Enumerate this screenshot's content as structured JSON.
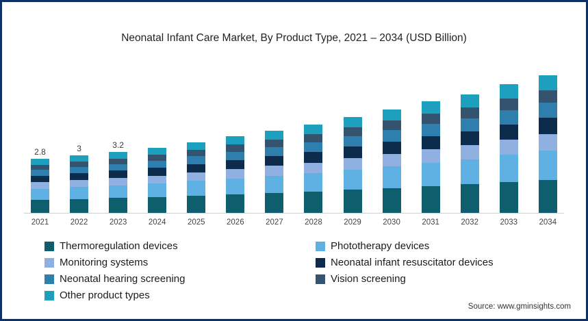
{
  "frame": {
    "border_color": "#0d3166"
  },
  "title": "Neonatal Infant Care Market, By Product Type, 2021 – 2034 (USD Billion)",
  "source": "Source: www.gminsights.com",
  "chart_data": {
    "type": "bar",
    "stacked": true,
    "title": "Neonatal Infant Care Market, By Product Type, 2021 – 2034 (USD Billion)",
    "xlabel": "",
    "ylabel": "",
    "unit": "USD Billion",
    "grid": false,
    "legend_position": "bottom",
    "categories": [
      "2021",
      "2022",
      "2023",
      "2024",
      "2025",
      "2026",
      "2027",
      "2028",
      "2029",
      "2030",
      "2031",
      "2032",
      "2033",
      "2034"
    ],
    "totals": [
      2.8,
      3.0,
      3.2,
      3.4,
      3.7,
      4.0,
      4.3,
      4.6,
      5.0,
      5.4,
      5.8,
      6.2,
      6.7,
      7.2
    ],
    "total_labels": [
      "2.8",
      "3",
      "3.2",
      "",
      "",
      "",
      "",
      "",
      "",
      "",
      "",
      "",
      "",
      ""
    ],
    "series": [
      {
        "name": "Thermoregulation devices",
        "color": "#0f5e6e",
        "values": [
          0.67,
          0.72,
          0.77,
          0.82,
          0.89,
          0.96,
          1.03,
          1.1,
          1.2,
          1.3,
          1.39,
          1.49,
          1.61,
          1.73
        ]
      },
      {
        "name": "Phototherapy devices",
        "color": "#5fb0e3",
        "values": [
          0.59,
          0.63,
          0.67,
          0.71,
          0.78,
          0.84,
          0.9,
          0.97,
          1.05,
          1.13,
          1.22,
          1.3,
          1.41,
          1.51
        ]
      },
      {
        "name": "Monitoring systems",
        "color": "#8fb0e0",
        "values": [
          0.34,
          0.36,
          0.38,
          0.41,
          0.44,
          0.48,
          0.52,
          0.55,
          0.6,
          0.65,
          0.7,
          0.74,
          0.8,
          0.86
        ]
      },
      {
        "name": "Neonatal infant resuscitator devices",
        "color": "#0d2b4b",
        "values": [
          0.34,
          0.36,
          0.38,
          0.41,
          0.44,
          0.48,
          0.52,
          0.55,
          0.6,
          0.65,
          0.7,
          0.74,
          0.8,
          0.86
        ]
      },
      {
        "name": "Neonatal hearing screening",
        "color": "#2e7fae",
        "values": [
          0.31,
          0.33,
          0.35,
          0.37,
          0.41,
          0.44,
          0.47,
          0.51,
          0.55,
          0.59,
          0.64,
          0.68,
          0.74,
          0.79
        ]
      },
      {
        "name": "Vision screening",
        "color": "#34536e",
        "values": [
          0.25,
          0.27,
          0.29,
          0.31,
          0.33,
          0.36,
          0.39,
          0.41,
          0.45,
          0.49,
          0.52,
          0.56,
          0.6,
          0.65
        ]
      },
      {
        "name": "Other product types",
        "color": "#1d9fbe",
        "values": [
          0.31,
          0.33,
          0.35,
          0.37,
          0.41,
          0.44,
          0.47,
          0.51,
          0.55,
          0.59,
          0.64,
          0.68,
          0.74,
          0.79
        ]
      }
    ]
  }
}
